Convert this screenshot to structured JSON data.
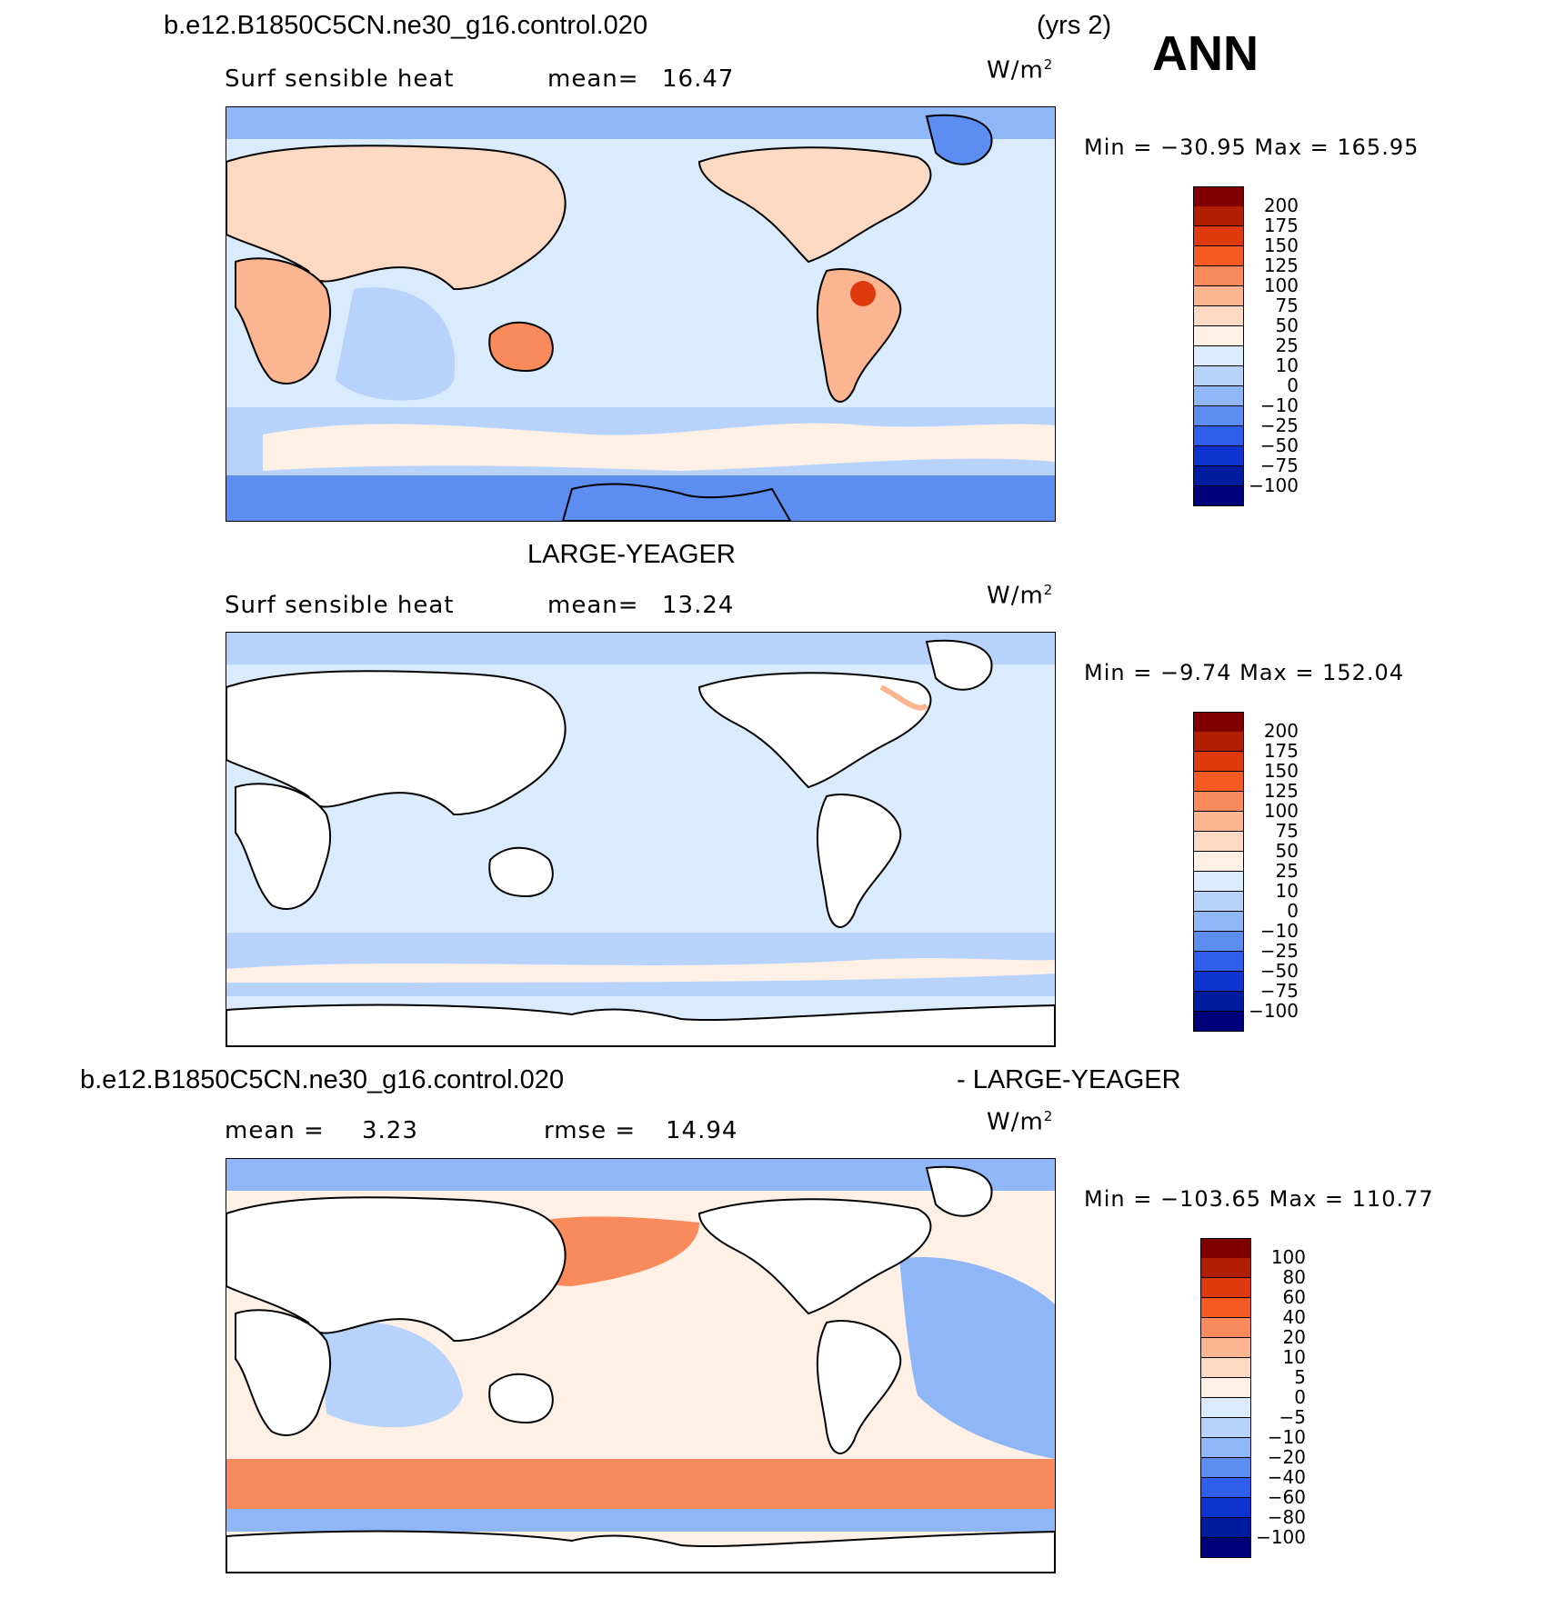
{
  "header": {
    "case_name": "b.e12.B1850C5CN.ne30_g16.control.020",
    "years": "(yrs 2)",
    "season": "ANN"
  },
  "panels": [
    {
      "title": "",
      "variable": "Surf sensible heat",
      "stat1_label": "mean=",
      "stat1_value": "16.47",
      "stat2_label": "",
      "stat2_value": "",
      "units": "W/m",
      "units_sup": "2",
      "minmax": "Min = −30.95 Max = 165.95",
      "colorbar_labels": [
        "200",
        "175",
        "150",
        "125",
        "100",
        "75",
        "50",
        "25",
        "10",
        "0",
        "−10",
        "−25",
        "−50",
        "−75",
        "−100"
      ]
    },
    {
      "title": "LARGE-YEAGER",
      "variable": "Surf sensible heat",
      "stat1_label": "mean=",
      "stat1_value": "13.24",
      "stat2_label": "",
      "stat2_value": "",
      "units": "W/m",
      "units_sup": "2",
      "minmax": "Min =  −9.74 Max = 152.04",
      "colorbar_labels": [
        "200",
        "175",
        "150",
        "125",
        "100",
        "75",
        "50",
        "25",
        "10",
        "0",
        "−10",
        "−25",
        "−50",
        "−75",
        "−100"
      ]
    },
    {
      "title_left": "b.e12.B1850C5CN.ne30_g16.control.020",
      "title_right": "- LARGE-YEAGER",
      "variable": "",
      "stat1_label": "mean =",
      "stat1_value": "3.23",
      "stat2_label": "rmse =",
      "stat2_value": "14.94",
      "units": "W/m",
      "units_sup": "2",
      "minmax": "Min = −103.65 Max = 110.77",
      "colorbar_labels": [
        "100",
        "80",
        "60",
        "40",
        "20",
        "10",
        "5",
        "0",
        "−5",
        "−10",
        "−20",
        "−40",
        "−60",
        "−80",
        "−100"
      ]
    }
  ],
  "palette": [
    "#7f0000",
    "#b21e00",
    "#de3a0d",
    "#f55a23",
    "#f98a5b",
    "#fbb591",
    "#fcd9c2",
    "#fff0e6",
    "#d9ebfc",
    "#b7d3fb",
    "#8fb6f7",
    "#5c8ef2",
    "#2e5eea",
    "#0e34d0",
    "#001c9e",
    "#00007a"
  ],
  "ocean_tone_ctrl": "#d9ebfc",
  "ocean_tone_obs": "#d9ebfc",
  "land_fill_obs": "#ffffff"
}
